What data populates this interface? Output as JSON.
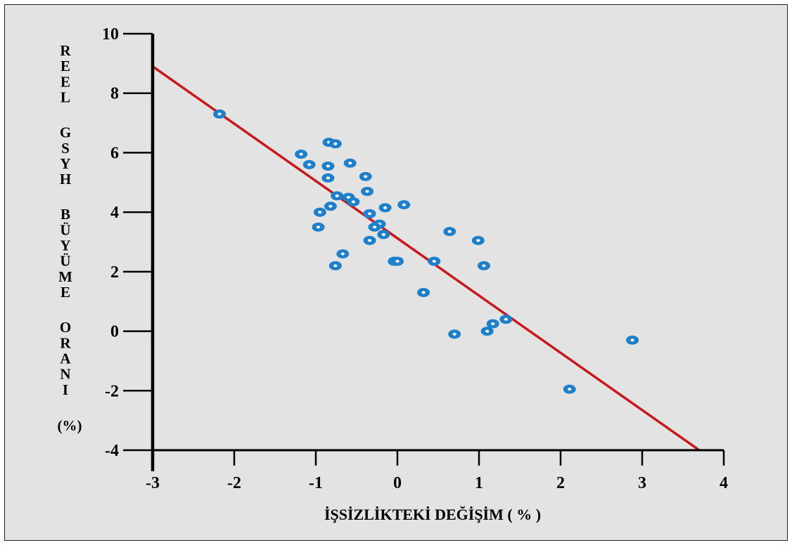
{
  "chart_data": {
    "type": "scatter",
    "title": "",
    "xlabel": "İŞSİZLİKTEKİ DEĞİŞİM ( % )",
    "ylabel_lines": [
      "REEL",
      "GSYH",
      "BÜYÜME",
      "ORANI"
    ],
    "ylabel_unit": "(%)",
    "xlim": [
      -3,
      4
    ],
    "ylim": [
      -4,
      10
    ],
    "xticks": [
      -3,
      -2,
      -1,
      0,
      1,
      2,
      3,
      4
    ],
    "yticks": [
      -4,
      -2,
      0,
      2,
      4,
      6,
      8,
      10
    ],
    "xtick_labels": [
      "-3",
      "-2",
      "-1",
      "0",
      "1",
      "2",
      "3",
      "4"
    ],
    "ytick_labels": [
      "-4",
      "-2",
      "0",
      "2",
      "4",
      "6",
      "8",
      "10"
    ],
    "grid": false,
    "colors": {
      "points": "#1e7fcb",
      "fit_line": "#c8181c",
      "background": "#e3e3e3"
    },
    "fit_line": {
      "x": [
        -3,
        3.7
      ],
      "y": [
        8.9,
        -4
      ]
    },
    "points": [
      {
        "x": -2.18,
        "y": 7.3
      },
      {
        "x": -1.18,
        "y": 5.95
      },
      {
        "x": -1.08,
        "y": 5.6
      },
      {
        "x": -0.84,
        "y": 6.35
      },
      {
        "x": -0.76,
        "y": 6.3
      },
      {
        "x": -0.85,
        "y": 5.55
      },
      {
        "x": -0.58,
        "y": 5.65
      },
      {
        "x": -0.85,
        "y": 5.15
      },
      {
        "x": -0.39,
        "y": 5.2
      },
      {
        "x": -0.37,
        "y": 4.7
      },
      {
        "x": -0.74,
        "y": 4.55
      },
      {
        "x": -0.6,
        "y": 4.5
      },
      {
        "x": -0.54,
        "y": 4.35
      },
      {
        "x": -0.82,
        "y": 4.2
      },
      {
        "x": -0.95,
        "y": 4.0
      },
      {
        "x": -0.34,
        "y": 3.95
      },
      {
        "x": -0.15,
        "y": 4.15
      },
      {
        "x": 0.08,
        "y": 4.25
      },
      {
        "x": -0.22,
        "y": 3.6
      },
      {
        "x": -0.28,
        "y": 3.5
      },
      {
        "x": -0.17,
        "y": 3.25
      },
      {
        "x": -0.97,
        "y": 3.5
      },
      {
        "x": -0.34,
        "y": 3.05
      },
      {
        "x": -0.67,
        "y": 2.6
      },
      {
        "x": -0.76,
        "y": 2.2
      },
      {
        "x": -0.04,
        "y": 2.35
      },
      {
        "x": 0.0,
        "y": 2.35
      },
      {
        "x": 0.45,
        "y": 2.35
      },
      {
        "x": 0.32,
        "y": 1.3
      },
      {
        "x": 0.64,
        "y": 3.35
      },
      {
        "x": 0.99,
        "y": 3.05
      },
      {
        "x": 1.06,
        "y": 2.2
      },
      {
        "x": 1.33,
        "y": 0.4
      },
      {
        "x": 1.17,
        "y": 0.25
      },
      {
        "x": 1.1,
        "y": 0.0
      },
      {
        "x": 0.7,
        "y": -0.1
      },
      {
        "x": 2.88,
        "y": -0.3
      },
      {
        "x": 2.11,
        "y": -1.95
      }
    ]
  }
}
